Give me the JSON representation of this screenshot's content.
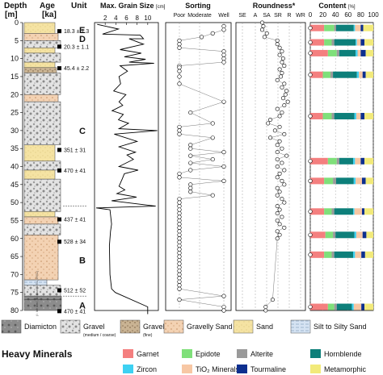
{
  "chart_data": {
    "type": "composite-stratigraphic-log",
    "depth_axis": {
      "label": "Depth",
      "unit": "[m]",
      "range": [
        0,
        80
      ],
      "ticks": [
        0,
        5,
        10,
        15,
        20,
        25,
        30,
        35,
        40,
        45,
        50,
        55,
        60,
        65,
        70,
        75,
        80
      ]
    },
    "column_headers": {
      "age": "Age",
      "age_unit": "[ka]",
      "unit": "Unit",
      "grain_size": "Max. Grain Size",
      "grain_size_unit": "[cm]",
      "sorting": "Sorting",
      "roundness": "Roundness*",
      "content": "Content",
      "content_unit": "[%]"
    },
    "units": [
      {
        "label": "E",
        "depth": 2
      },
      {
        "label": "D",
        "depth": 4.5
      },
      {
        "label": "C",
        "depth": 30
      },
      {
        "label": "B",
        "depth": 66
      },
      {
        "label": "A",
        "depth": 78.5
      }
    ],
    "ages": [
      {
        "label": "18.3 ± 1.3",
        "depth": 2.5
      },
      {
        "label": "20.3 ± 1.1",
        "depth": 6.8
      },
      {
        "label": "45.4 ± 2.2",
        "depth": 12.8
      },
      {
        "label": "351 ± 31",
        "depth": 35.5
      },
      {
        "label": "470 ± 41",
        "depth": 41.2
      },
      {
        "label": "437 ± 41",
        "depth": 54.8
      },
      {
        "label": "528 ± 34",
        "depth": 61
      },
      {
        "label": "512 ± 52",
        "depth": 74.5
      },
      {
        "label": "470 ± 41",
        "depth": 80.3
      }
    ],
    "method_note": "(I: Infrared, B: Blue, OSL, IRSL)",
    "lithology": [
      {
        "top": 0,
        "bottom": 3,
        "type": "sand"
      },
      {
        "top": 3,
        "bottom": 5,
        "type": "gravelly-sand"
      },
      {
        "top": 5,
        "bottom": 7,
        "type": "gravel"
      },
      {
        "top": 7,
        "bottom": 8.5,
        "type": "sand"
      },
      {
        "top": 8.5,
        "bottom": 11,
        "type": "gravel"
      },
      {
        "top": 11,
        "bottom": 12.5,
        "type": "sand"
      },
      {
        "top": 12.5,
        "bottom": 14,
        "type": "gravel-fine"
      },
      {
        "top": 14,
        "bottom": 20,
        "type": "gravel"
      },
      {
        "top": 20,
        "bottom": 22,
        "type": "gravelly-sand"
      },
      {
        "top": 22,
        "bottom": 34,
        "type": "gravel"
      },
      {
        "top": 34,
        "bottom": 38.5,
        "type": "sand"
      },
      {
        "top": 38.5,
        "bottom": 41,
        "type": "gravel"
      },
      {
        "top": 41,
        "bottom": 43.5,
        "type": "sand"
      },
      {
        "top": 43.5,
        "bottom": 52.5,
        "type": "gravel"
      },
      {
        "top": 52.5,
        "bottom": 54,
        "type": "sand"
      },
      {
        "top": 54,
        "bottom": 56,
        "type": "gravelly-sand"
      },
      {
        "top": 56,
        "bottom": 59,
        "type": "gravel"
      },
      {
        "top": 59,
        "bottom": 71.5,
        "type": "gravelly-sand"
      },
      {
        "top": 71.5,
        "bottom": 73,
        "type": "silt"
      },
      {
        "top": 73,
        "bottom": 76,
        "type": "gravel"
      },
      {
        "top": 76,
        "bottom": 77,
        "type": "diamicton"
      },
      {
        "top": 77,
        "bottom": 80,
        "type": "diamicton"
      }
    ],
    "grain_size": {
      "ticks": [
        2,
        4,
        6,
        8,
        10
      ],
      "range": [
        0,
        12
      ],
      "profile": [
        [
          0.5,
          0.5
        ],
        [
          4.5,
          1.8
        ],
        [
          1.5,
          3.2
        ],
        [
          8.6,
          3.5
        ],
        [
          9.2,
          4.5
        ],
        [
          6.5,
          4.5
        ],
        [
          9.2,
          6.0
        ],
        [
          4.8,
          7.5
        ],
        [
          8.8,
          8.5
        ],
        [
          5.6,
          9.5
        ],
        [
          9.6,
          10.2
        ],
        [
          6.5,
          11.0
        ],
        [
          11.2,
          11.3
        ],
        [
          4.8,
          12.0
        ],
        [
          6.2,
          13.5
        ],
        [
          4.6,
          15.0
        ],
        [
          4.9,
          17.0
        ],
        [
          3.6,
          19.0
        ],
        [
          5.9,
          20.0
        ],
        [
          4.6,
          22.0
        ],
        [
          5.3,
          23.0
        ],
        [
          3.3,
          24.5
        ],
        [
          5.4,
          25.5
        ],
        [
          4.5,
          27.0
        ],
        [
          6.4,
          28.0
        ],
        [
          4.6,
          29.5
        ],
        [
          11.8,
          30.0
        ],
        [
          3.7,
          31.0
        ],
        [
          8.0,
          33.0
        ],
        [
          4.6,
          34.5
        ],
        [
          7.7,
          36.0
        ],
        [
          6.1,
          36.8
        ],
        [
          7.3,
          38.0
        ],
        [
          4.6,
          40.0
        ],
        [
          8.2,
          41.0
        ],
        [
          5.6,
          42.0
        ],
        [
          5.2,
          43.5
        ],
        [
          4.6,
          45.5
        ],
        [
          5.7,
          46.5
        ],
        [
          4.2,
          47.5
        ],
        [
          7.9,
          48.5
        ],
        [
          3.2,
          49.5
        ],
        [
          11.5,
          51.0
        ],
        [
          0.3,
          51.5
        ],
        [
          2.9,
          52.0
        ],
        [
          3.2,
          56.0
        ],
        [
          3.0,
          58.0
        ],
        [
          2.8,
          62.0
        ],
        [
          2.9,
          70.0
        ],
        [
          3.2,
          74.0
        ],
        [
          3.9,
          75.0
        ],
        [
          10.0,
          79.0
        ],
        [
          10.0,
          81.0
        ]
      ]
    },
    "sorting": {
      "categories": [
        "Poor",
        "Moderate",
        "Well"
      ],
      "points": [
        [
          2.0,
          1
        ],
        [
          2.0,
          2
        ],
        [
          1.5,
          3
        ],
        [
          1.0,
          4
        ],
        [
          0.0,
          5
        ],
        [
          0.0,
          6
        ],
        [
          0.0,
          7
        ],
        [
          2.0,
          8
        ],
        [
          2.0,
          9
        ],
        [
          2.0,
          10
        ],
        [
          2.0,
          11
        ],
        [
          0.0,
          12
        ],
        [
          0.0,
          12.5
        ],
        [
          0.0,
          13.5
        ],
        [
          0.0,
          15
        ],
        [
          0.0,
          17
        ],
        [
          2.0,
          22
        ],
        [
          0.5,
          25
        ],
        [
          1.5,
          28
        ],
        [
          0.0,
          29
        ],
        [
          0.0,
          30
        ],
        [
          0.0,
          31
        ],
        [
          1.5,
          32
        ],
        [
          0.5,
          34
        ],
        [
          0.5,
          35
        ],
        [
          2.0,
          36
        ],
        [
          0.5,
          37
        ],
        [
          1.5,
          38
        ],
        [
          0.5,
          39
        ],
        [
          2.0,
          40
        ],
        [
          0.5,
          41
        ],
        [
          0.0,
          42
        ],
        [
          0.0,
          43
        ],
        [
          2.0,
          44
        ],
        [
          0.5,
          45
        ],
        [
          0.5,
          46
        ],
        [
          0.5,
          47
        ],
        [
          1.5,
          48
        ],
        [
          0.0,
          49
        ],
        [
          0.0,
          50
        ],
        [
          0.0,
          51
        ],
        [
          0.0,
          52
        ],
        [
          0.0,
          53
        ],
        [
          0.0,
          54
        ],
        [
          0.0,
          55
        ],
        [
          0.0,
          56
        ],
        [
          0.0,
          57
        ],
        [
          0.0,
          58
        ],
        [
          0.0,
          59
        ],
        [
          0.0,
          60
        ],
        [
          0.0,
          61
        ],
        [
          0.0,
          62
        ],
        [
          0.0,
          63
        ],
        [
          0.0,
          64
        ],
        [
          0.0,
          65
        ],
        [
          0.0,
          66
        ],
        [
          0.0,
          67
        ],
        [
          0.0,
          68
        ],
        [
          0.0,
          69
        ],
        [
          0.0,
          70
        ],
        [
          0.0,
          71
        ],
        [
          0.0,
          72
        ],
        [
          0.0,
          73
        ],
        [
          0.0,
          74
        ],
        [
          2.0,
          76
        ],
        [
          0.0,
          77
        ],
        [
          2.0,
          79
        ],
        [
          2.0,
          80
        ]
      ]
    },
    "roundness": {
      "categories": [
        "SE",
        "A",
        "SA",
        "SR",
        "R",
        "WR"
      ],
      "points": [
        [
          1.7,
          0
        ],
        [
          1.8,
          1
        ],
        [
          1.7,
          2
        ],
        [
          2.1,
          3
        ],
        [
          1.9,
          4
        ],
        [
          3.0,
          5
        ],
        [
          3.0,
          6
        ],
        [
          3.2,
          7
        ],
        [
          3.4,
          8
        ],
        [
          3.2,
          9
        ],
        [
          3.5,
          10
        ],
        [
          3.4,
          11
        ],
        [
          3.6,
          12
        ],
        [
          3.2,
          13
        ],
        [
          3.4,
          14
        ],
        [
          3.3,
          15
        ],
        [
          3.0,
          16
        ],
        [
          3.6,
          17
        ],
        [
          3.4,
          18
        ],
        [
          3.8,
          19
        ],
        [
          3.7,
          20
        ],
        [
          3.5,
          21
        ],
        [
          3.9,
          22
        ],
        [
          3.6,
          23
        ],
        [
          3.0,
          24
        ],
        [
          3.4,
          25
        ],
        [
          3.2,
          26
        ],
        [
          2.4,
          27
        ],
        [
          2.2,
          28
        ],
        [
          3.2,
          29
        ],
        [
          2.8,
          30
        ],
        [
          3.6,
          31
        ],
        [
          2.4,
          32
        ],
        [
          3.2,
          33
        ],
        [
          3.0,
          34
        ],
        [
          3.4,
          35
        ],
        [
          3.0,
          36
        ],
        [
          3.8,
          37
        ],
        [
          3.0,
          38
        ],
        [
          3.4,
          39
        ],
        [
          3.0,
          40
        ],
        [
          3.6,
          41
        ],
        [
          3.2,
          42
        ],
        [
          3.0,
          43
        ],
        [
          3.4,
          44
        ],
        [
          3.6,
          45
        ],
        [
          3.0,
          46
        ],
        [
          3.2,
          47
        ],
        [
          3.0,
          48
        ],
        [
          3.4,
          49
        ],
        [
          3.6,
          50
        ],
        [
          3.0,
          51
        ],
        [
          3.2,
          52
        ],
        [
          3.0,
          53
        ],
        [
          3.4,
          54
        ],
        [
          3.0,
          55
        ],
        [
          3.2,
          56
        ],
        [
          3.6,
          57
        ],
        [
          3.0,
          58
        ],
        [
          3.2,
          59
        ],
        [
          3.0,
          60
        ],
        [
          2.6,
          77
        ],
        [
          2.0,
          79
        ],
        [
          2.0,
          80
        ]
      ]
    },
    "heavy_minerals": {
      "ticks": [
        0,
        20,
        40,
        60,
        80,
        100
      ],
      "mineral_order": [
        "Garnet",
        "Epidote",
        "Alterite",
        "Hornblende",
        "Zircon",
        "TiO₂ Minerals",
        "Tourmaline",
        "Metamorphic"
      ],
      "samples": [
        {
          "depth": 1.5,
          "values": [
            22,
            16,
            3,
            28,
            2,
            9,
            4,
            16
          ]
        },
        {
          "depth": 5.5,
          "values": [
            22,
            12,
            4,
            34,
            2,
            6,
            6,
            14
          ]
        },
        {
          "depth": 8.5,
          "values": [
            28,
            14,
            4,
            26,
            3,
            5,
            8,
            12
          ]
        },
        {
          "depth": 14.5,
          "values": [
            20,
            12,
            4,
            38,
            3,
            6,
            5,
            12
          ]
        },
        {
          "depth": 26,
          "values": [
            20,
            14,
            4,
            32,
            3,
            7,
            6,
            14
          ]
        },
        {
          "depth": 38.5,
          "values": [
            28,
            14,
            4,
            22,
            3,
            9,
            6,
            14
          ]
        },
        {
          "depth": 44,
          "values": [
            22,
            14,
            5,
            28,
            3,
            10,
            6,
            12
          ]
        },
        {
          "depth": 52.5,
          "values": [
            22,
            12,
            4,
            30,
            2,
            12,
            4,
            14
          ]
        },
        {
          "depth": 59,
          "values": [
            24,
            12,
            4,
            30,
            3,
            10,
            6,
            11
          ]
        },
        {
          "depth": 64.5,
          "values": [
            22,
            12,
            4,
            30,
            3,
            10,
            6,
            13
          ]
        },
        {
          "depth": 79,
          "values": [
            28,
            10,
            4,
            24,
            3,
            12,
            5,
            14
          ]
        }
      ]
    },
    "lithology_legend": [
      {
        "key": "diamicton",
        "label": "Diamicton"
      },
      {
        "key": "gravel",
        "label": "Gravel",
        "sub": "(medium / coarse)"
      },
      {
        "key": "gravel-fine",
        "label": "Gravel",
        "sub": "(fine)"
      },
      {
        "key": "gravelly-sand",
        "label": "Gravelly Sand"
      },
      {
        "key": "sand",
        "label": "Sand"
      },
      {
        "key": "silt",
        "label": "Silt to Silty Sand"
      }
    ],
    "heavy_minerals_title": "Heavy Minerals",
    "mineral_colors": {
      "Garnet": "#f47f7f",
      "Epidote": "#7fe07a",
      "Alterite": "#9a9a9a",
      "Hornblende": "#0d7f7a",
      "Zircon": "#3dd1f2",
      "TiO₂ Minerals": "#f7c7a4",
      "Tourmaline": "#0d2f8f",
      "Metamorphic": "#f2ea7a"
    },
    "lithology_colors": {
      "diamicton": "#8c8c8c",
      "gravel": "#d9d9d9",
      "gravel-fine": "#bfa98a",
      "gravelly-sand": "#f3d2b3",
      "sand": "#f5e3a3",
      "silt": "#d5e3f3"
    }
  }
}
